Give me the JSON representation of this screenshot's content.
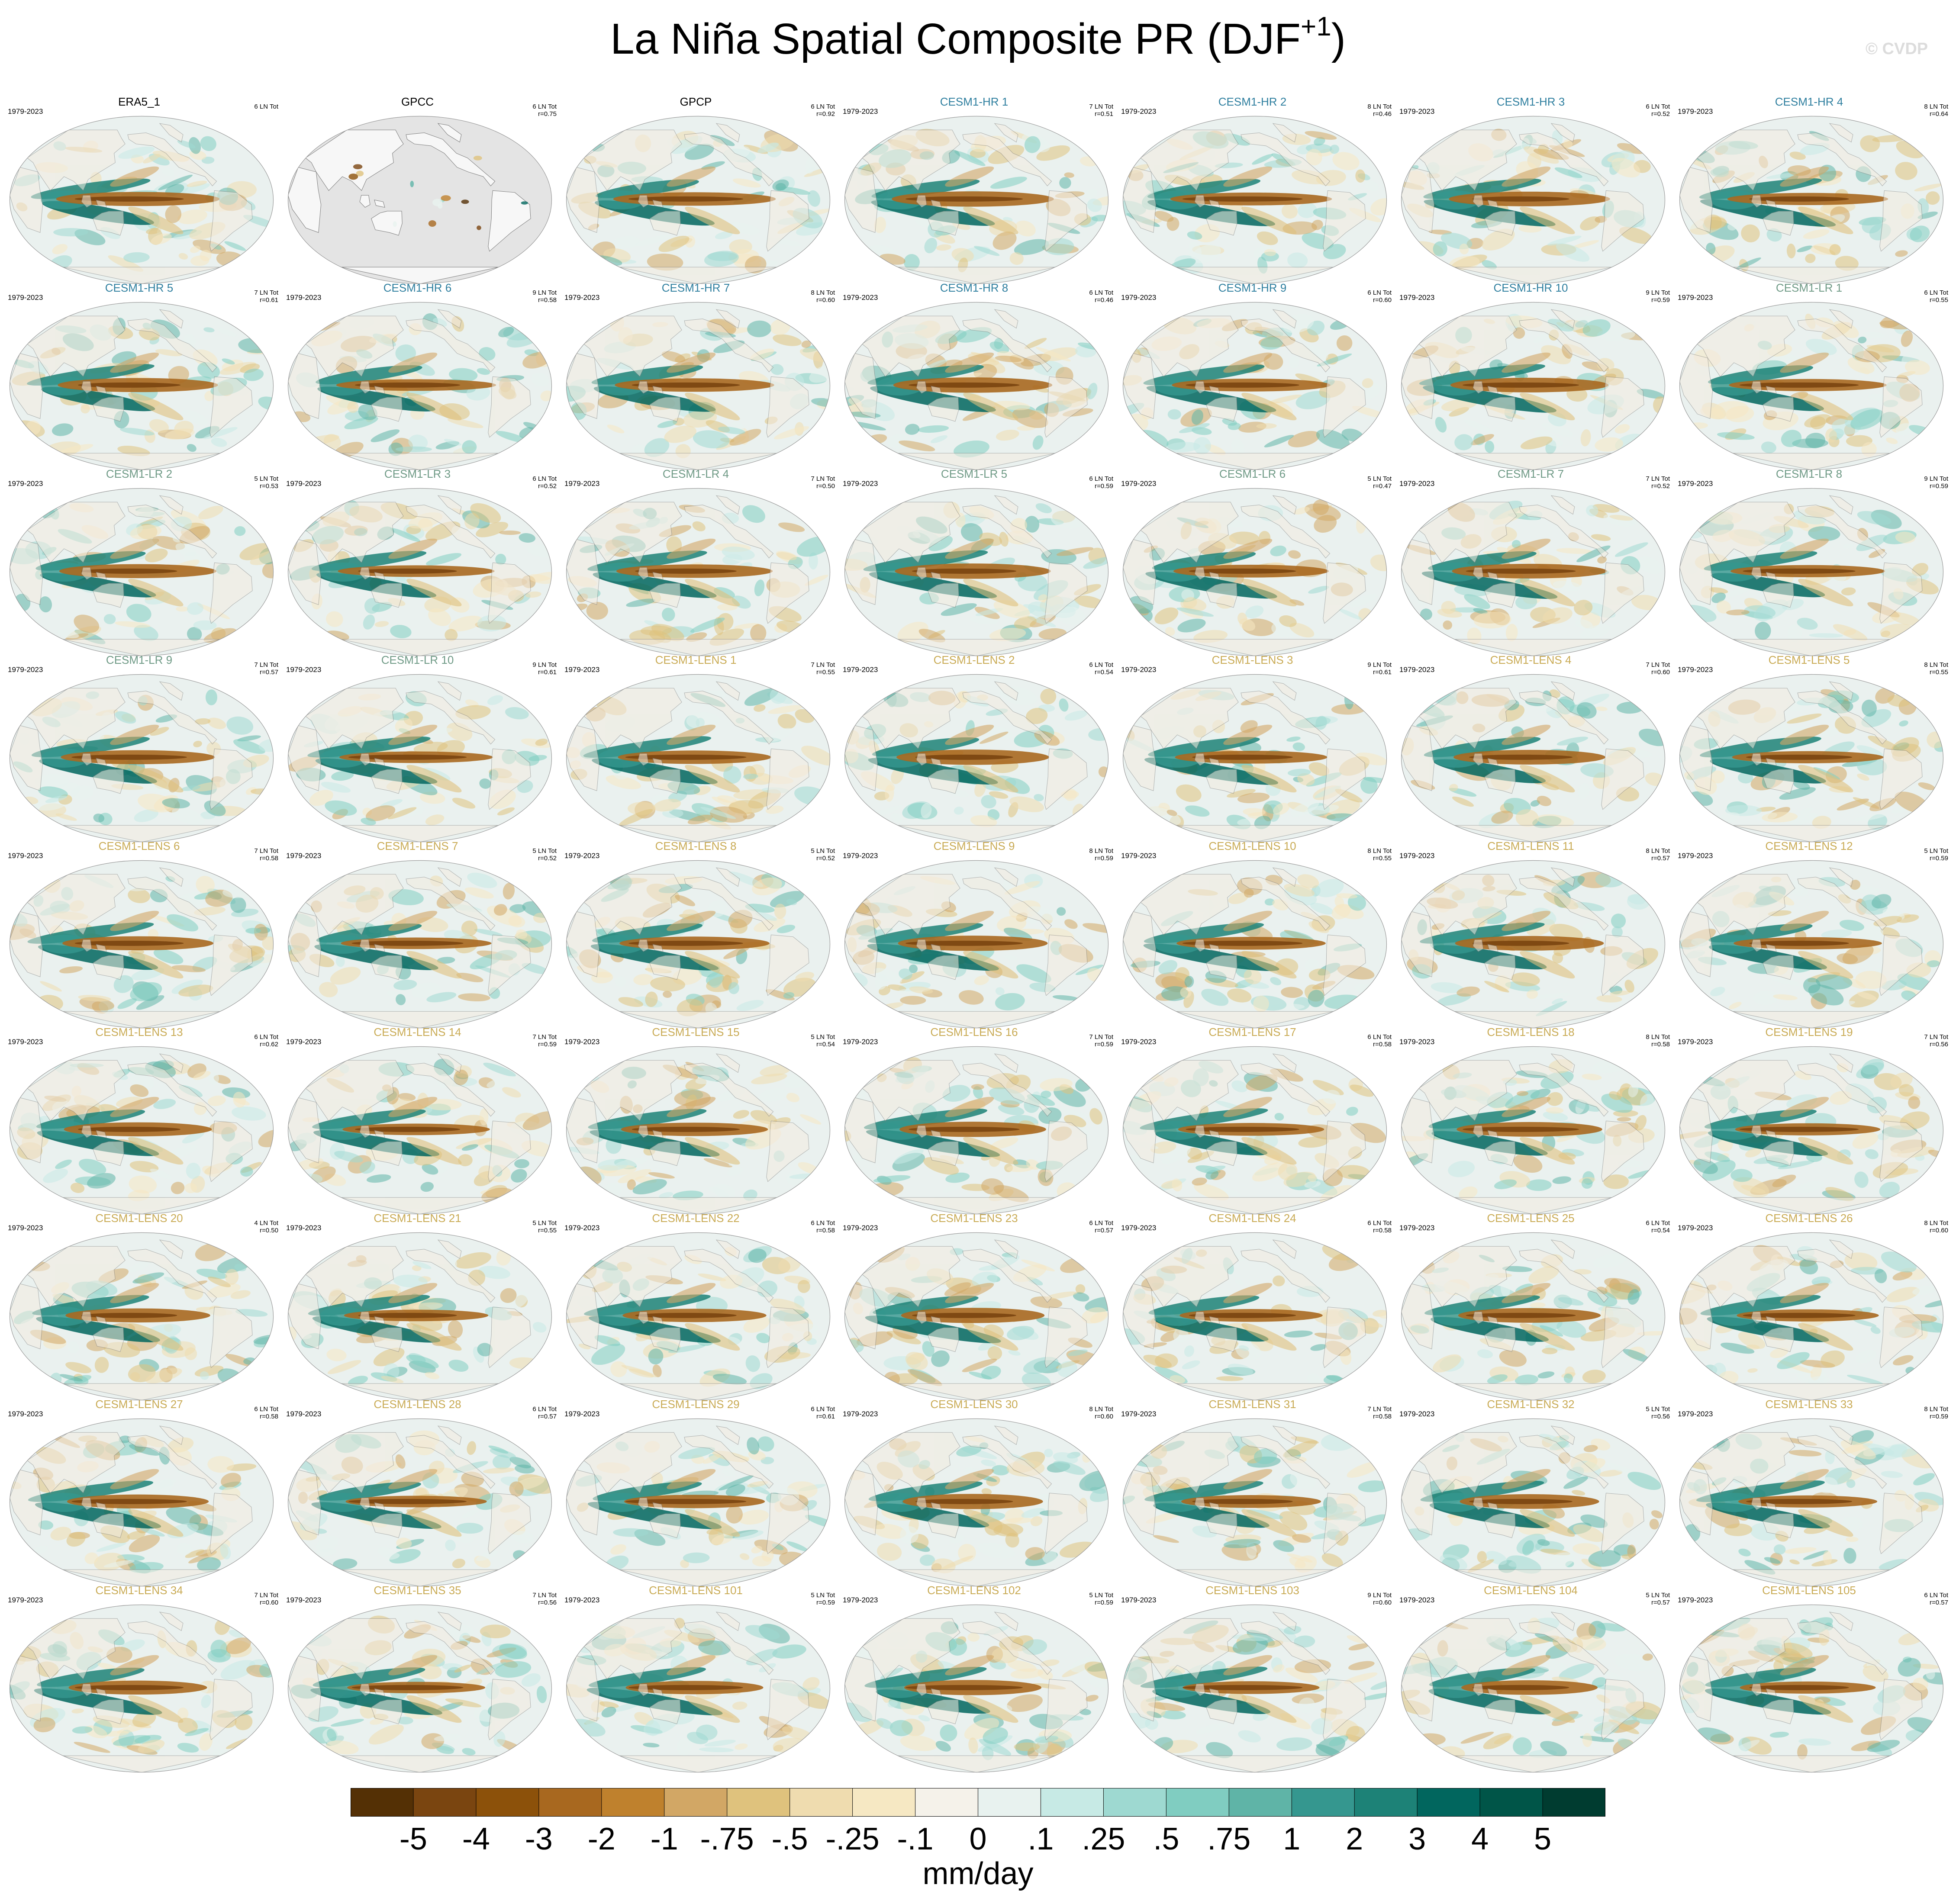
{
  "figure": {
    "title_main": "La Niña Spatial Composite PR (DJF",
    "title_sup": "+1",
    "title_close": ")",
    "watermark": "© CVDP",
    "units": "mm/day"
  },
  "colors": {
    "obs_title": "#000000",
    "hr_title": "#2f7f9f",
    "lr_title": "#6f9a86",
    "lens_title": "#c9ab55",
    "ocean_neutral": "#eaf1ef",
    "land": "#f2ece0",
    "missing": "#e4e4e4",
    "coast": "#7a7a7a"
  },
  "colorbar": {
    "colors": [
      "#543005",
      "#7a4510",
      "#8c510a",
      "#a8681f",
      "#bf812d",
      "#d2a765",
      "#dfc27d",
      "#efdcaf",
      "#f6e8c3",
      "#f5f2ea",
      "#e8f2ef",
      "#c7eae5",
      "#9ed9d1",
      "#80cdc1",
      "#5fb4a7",
      "#35978f",
      "#1d8277",
      "#01665e",
      "#005548",
      "#003c30"
    ],
    "labels": [
      "-5",
      "-4",
      "-3",
      "-2",
      "-1",
      "-.75",
      "-.5",
      "-.25",
      "-.1",
      "0",
      ".1",
      ".25",
      ".5",
      ".75",
      "1",
      "2",
      "3",
      "4",
      "5"
    ]
  },
  "chart_data": {
    "type": "heatmap",
    "variable": "PR",
    "season": "DJF+1",
    "composite": "La Niña",
    "units": "mm/day",
    "contour_levels": [
      -5,
      -4,
      -3,
      -2,
      -1,
      -0.75,
      -0.5,
      -0.25,
      -0.1,
      0,
      0.1,
      0.25,
      0.5,
      0.75,
      1,
      2,
      3,
      4,
      5
    ],
    "panels": [
      {
        "name": "ERA5_1",
        "group": "obs",
        "years": "1979-2023",
        "events": "6 LN Tot",
        "r": ""
      },
      {
        "name": "GPCC",
        "group": "obs",
        "years": "",
        "events": "6 LN Tot",
        "r": "r=0.75",
        "missing": true
      },
      {
        "name": "GPCP",
        "group": "obs",
        "years": "",
        "events": "6 LN Tot",
        "r": "r=0.92"
      },
      {
        "name": "CESM1-HR 1",
        "group": "hr",
        "years": "1979-2023",
        "events": "7 LN Tot",
        "r": "r=0.51"
      },
      {
        "name": "CESM1-HR 2",
        "group": "hr",
        "years": "1979-2023",
        "events": "8 LN Tot",
        "r": "r=0.46"
      },
      {
        "name": "CESM1-HR 3",
        "group": "hr",
        "years": "1979-2023",
        "events": "6 LN Tot",
        "r": "r=0.52"
      },
      {
        "name": "CESM1-HR 4",
        "group": "hr",
        "years": "1979-2023",
        "events": "8 LN Tot",
        "r": "r=0.64"
      },
      {
        "name": "CESM1-HR 5",
        "group": "hr",
        "years": "1979-2023",
        "events": "7 LN Tot",
        "r": "r=0.61"
      },
      {
        "name": "CESM1-HR 6",
        "group": "hr",
        "years": "1979-2023",
        "events": "9 LN Tot",
        "r": "r=0.58"
      },
      {
        "name": "CESM1-HR 7",
        "group": "hr",
        "years": "1979-2023",
        "events": "8 LN Tot",
        "r": "r=0.60"
      },
      {
        "name": "CESM1-HR 8",
        "group": "hr",
        "years": "1979-2023",
        "events": "6 LN Tot",
        "r": "r=0.46"
      },
      {
        "name": "CESM1-HR 9",
        "group": "hr",
        "years": "1979-2023",
        "events": "6 LN Tot",
        "r": "r=0.60"
      },
      {
        "name": "CESM1-HR 10",
        "group": "hr",
        "years": "1979-2023",
        "events": "9 LN Tot",
        "r": "r=0.59"
      },
      {
        "name": "CESM1-LR 1",
        "group": "lr",
        "years": "1979-2023",
        "events": "6 LN Tot",
        "r": "r=0.55"
      },
      {
        "name": "CESM1-LR 2",
        "group": "lr",
        "years": "1979-2023",
        "events": "5 LN Tot",
        "r": "r=0.53"
      },
      {
        "name": "CESM1-LR 3",
        "group": "lr",
        "years": "1979-2023",
        "events": "6 LN Tot",
        "r": "r=0.52"
      },
      {
        "name": "CESM1-LR 4",
        "group": "lr",
        "years": "1979-2023",
        "events": "7 LN Tot",
        "r": "r=0.50"
      },
      {
        "name": "CESM1-LR 5",
        "group": "lr",
        "years": "1979-2023",
        "events": "6 LN Tot",
        "r": "r=0.59"
      },
      {
        "name": "CESM1-LR 6",
        "group": "lr",
        "years": "1979-2023",
        "events": "5 LN Tot",
        "r": "r=0.47"
      },
      {
        "name": "CESM1-LR 7",
        "group": "lr",
        "years": "1979-2023",
        "events": "7 LN Tot",
        "r": "r=0.52"
      },
      {
        "name": "CESM1-LR 8",
        "group": "lr",
        "years": "1979-2023",
        "events": "9 LN Tot",
        "r": "r=0.59"
      },
      {
        "name": "CESM1-LR 9",
        "group": "lr",
        "years": "1979-2023",
        "events": "7 LN Tot",
        "r": "r=0.57"
      },
      {
        "name": "CESM1-LR 10",
        "group": "lr",
        "years": "1979-2023",
        "events": "9 LN Tot",
        "r": "r=0.61"
      },
      {
        "name": "CESM1-LENS 1",
        "group": "lens",
        "years": "1979-2023",
        "events": "7 LN Tot",
        "r": "r=0.55"
      },
      {
        "name": "CESM1-LENS 2",
        "group": "lens",
        "years": "1979-2023",
        "events": "6 LN Tot",
        "r": "r=0.54"
      },
      {
        "name": "CESM1-LENS 3",
        "group": "lens",
        "years": "1979-2023",
        "events": "9 LN Tot",
        "r": "r=0.61"
      },
      {
        "name": "CESM1-LENS 4",
        "group": "lens",
        "years": "1979-2023",
        "events": "7 LN Tot",
        "r": "r=0.60"
      },
      {
        "name": "CESM1-LENS 5",
        "group": "lens",
        "years": "1979-2023",
        "events": "8 LN Tot",
        "r": "r=0.55"
      },
      {
        "name": "CESM1-LENS 6",
        "group": "lens",
        "years": "1979-2023",
        "events": "7 LN Tot",
        "r": "r=0.58"
      },
      {
        "name": "CESM1-LENS 7",
        "group": "lens",
        "years": "1979-2023",
        "events": "5 LN Tot",
        "r": "r=0.52"
      },
      {
        "name": "CESM1-LENS 8",
        "group": "lens",
        "years": "1979-2023",
        "events": "5 LN Tot",
        "r": "r=0.52"
      },
      {
        "name": "CESM1-LENS 9",
        "group": "lens",
        "years": "1979-2023",
        "events": "8 LN Tot",
        "r": "r=0.59"
      },
      {
        "name": "CESM1-LENS 10",
        "group": "lens",
        "years": "1979-2023",
        "events": "8 LN Tot",
        "r": "r=0.55"
      },
      {
        "name": "CESM1-LENS 11",
        "group": "lens",
        "years": "1979-2023",
        "events": "8 LN Tot",
        "r": "r=0.57"
      },
      {
        "name": "CESM1-LENS 12",
        "group": "lens",
        "years": "1979-2023",
        "events": "5 LN Tot",
        "r": "r=0.59"
      },
      {
        "name": "CESM1-LENS 13",
        "group": "lens",
        "years": "1979-2023",
        "events": "6 LN Tot",
        "r": "r=0.62"
      },
      {
        "name": "CESM1-LENS 14",
        "group": "lens",
        "years": "1979-2023",
        "events": "7 LN Tot",
        "r": "r=0.59"
      },
      {
        "name": "CESM1-LENS 15",
        "group": "lens",
        "years": "1979-2023",
        "events": "5 LN Tot",
        "r": "r=0.54"
      },
      {
        "name": "CESM1-LENS 16",
        "group": "lens",
        "years": "1979-2023",
        "events": "7 LN Tot",
        "r": "r=0.59"
      },
      {
        "name": "CESM1-LENS 17",
        "group": "lens",
        "years": "1979-2023",
        "events": "6 LN Tot",
        "r": "r=0.58"
      },
      {
        "name": "CESM1-LENS 18",
        "group": "lens",
        "years": "1979-2023",
        "events": "8 LN Tot",
        "r": "r=0.58"
      },
      {
        "name": "CESM1-LENS 19",
        "group": "lens",
        "years": "1979-2023",
        "events": "7 LN Tot",
        "r": "r=0.56"
      },
      {
        "name": "CESM1-LENS 20",
        "group": "lens",
        "years": "1979-2023",
        "events": "4 LN Tot",
        "r": "r=0.50"
      },
      {
        "name": "CESM1-LENS 21",
        "group": "lens",
        "years": "1979-2023",
        "events": "5 LN Tot",
        "r": "r=0.55"
      },
      {
        "name": "CESM1-LENS 22",
        "group": "lens",
        "years": "1979-2023",
        "events": "6 LN Tot",
        "r": "r=0.58"
      },
      {
        "name": "CESM1-LENS 23",
        "group": "lens",
        "years": "1979-2023",
        "events": "6 LN Tot",
        "r": "r=0.57"
      },
      {
        "name": "CESM1-LENS 24",
        "group": "lens",
        "years": "1979-2023",
        "events": "6 LN Tot",
        "r": "r=0.58"
      },
      {
        "name": "CESM1-LENS 25",
        "group": "lens",
        "years": "1979-2023",
        "events": "6 LN Tot",
        "r": "r=0.54"
      },
      {
        "name": "CESM1-LENS 26",
        "group": "lens",
        "years": "1979-2023",
        "events": "8 LN Tot",
        "r": "r=0.60"
      },
      {
        "name": "CESM1-LENS 27",
        "group": "lens",
        "years": "1979-2023",
        "events": "6 LN Tot",
        "r": "r=0.58"
      },
      {
        "name": "CESM1-LENS 28",
        "group": "lens",
        "years": "1979-2023",
        "events": "6 LN Tot",
        "r": "r=0.57"
      },
      {
        "name": "CESM1-LENS 29",
        "group": "lens",
        "years": "1979-2023",
        "events": "6 LN Tot",
        "r": "r=0.61"
      },
      {
        "name": "CESM1-LENS 30",
        "group": "lens",
        "years": "1979-2023",
        "events": "8 LN Tot",
        "r": "r=0.60"
      },
      {
        "name": "CESM1-LENS 31",
        "group": "lens",
        "years": "1979-2023",
        "events": "7 LN Tot",
        "r": "r=0.58"
      },
      {
        "name": "CESM1-LENS 32",
        "group": "lens",
        "years": "1979-2023",
        "events": "5 LN Tot",
        "r": "r=0.56"
      },
      {
        "name": "CESM1-LENS 33",
        "group": "lens",
        "years": "1979-2023",
        "events": "8 LN Tot",
        "r": "r=0.59"
      },
      {
        "name": "CESM1-LENS 34",
        "group": "lens",
        "years": "1979-2023",
        "events": "7 LN Tot",
        "r": "r=0.60"
      },
      {
        "name": "CESM1-LENS 35",
        "group": "lens",
        "years": "1979-2023",
        "events": "7 LN Tot",
        "r": "r=0.56"
      },
      {
        "name": "CESM1-LENS 101",
        "group": "lens",
        "years": "1979-2023",
        "events": "5 LN Tot",
        "r": "r=0.59"
      },
      {
        "name": "CESM1-LENS 102",
        "group": "lens",
        "years": "1979-2023",
        "events": "5 LN Tot",
        "r": "r=0.59"
      },
      {
        "name": "CESM1-LENS 103",
        "group": "lens",
        "years": "1979-2023",
        "events": "9 LN Tot",
        "r": "r=0.60"
      },
      {
        "name": "CESM1-LENS 104",
        "group": "lens",
        "years": "1979-2023",
        "events": "5 LN Tot",
        "r": "r=0.57"
      },
      {
        "name": "CESM1-LENS 105",
        "group": "lens",
        "years": "1979-2023",
        "events": "6 LN Tot",
        "r": "r=0.57"
      }
    ]
  }
}
